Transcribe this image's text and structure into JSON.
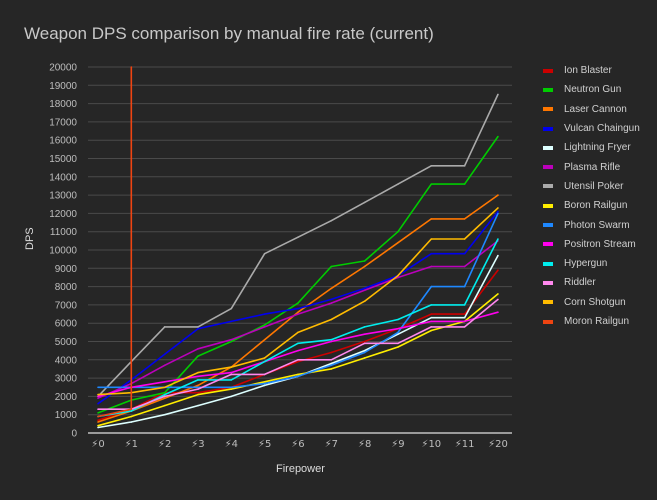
{
  "chart_data": {
    "type": "line",
    "title": "Weapon DPS comparison by manual fire rate (current)",
    "xlabel": "Firepower",
    "ylabel": "DPS",
    "ylim": [
      0,
      20000
    ],
    "yticks": [
      0,
      1000,
      2000,
      3000,
      4000,
      5000,
      6000,
      7000,
      8000,
      9000,
      10000,
      11000,
      12000,
      13000,
      14000,
      15000,
      16000,
      17000,
      18000,
      19000,
      20000
    ],
    "ytick_labels": [
      "0",
      "1000",
      "2000",
      "3000",
      "4000",
      "5000",
      "6000",
      "7000",
      "8000",
      "9000",
      "10000",
      "11000",
      "12000",
      "13000",
      "14000",
      "15000",
      "16000",
      "17000",
      "18000",
      "19000",
      "20000"
    ],
    "categories": [
      "⚡0",
      "⚡1",
      "⚡2",
      "⚡3",
      "⚡4",
      "⚡5",
      "⚡6",
      "⚡7",
      "⚡8",
      "⚡9",
      "⚡10",
      "⚡11",
      "⚡20"
    ],
    "grid": true,
    "legend_position": "right",
    "series": [
      {
        "name": "Ion Blaster",
        "color": "#cc0000",
        "values": [
          700,
          1300,
          2200,
          2200,
          2500,
          3200,
          3900,
          4400,
          5000,
          5700,
          6500,
          6500,
          8900
        ]
      },
      {
        "name": "Neutron Gun",
        "color": "#00cc00",
        "values": [
          1100,
          1800,
          2200,
          4200,
          5000,
          5900,
          7100,
          9100,
          9400,
          11000,
          13600,
          13600,
          16200
        ]
      },
      {
        "name": "Laser Cannon",
        "color": "#ff7700",
        "values": [
          600,
          1200,
          1900,
          2600,
          3600,
          5100,
          6600,
          7900,
          9100,
          10400,
          11700,
          11700,
          13000
        ]
      },
      {
        "name": "Vulcan Chaingun",
        "color": "#0000ee",
        "values": [
          1600,
          2900,
          4300,
          5700,
          6100,
          6500,
          6800,
          7300,
          7900,
          8600,
          9800,
          9800,
          12100
        ]
      },
      {
        "name": "Lightning Fryer",
        "color": "#ddffff",
        "values": [
          300,
          600,
          1000,
          1500,
          2000,
          2600,
          3100,
          3800,
          4500,
          5400,
          6300,
          6300,
          9700
        ]
      },
      {
        "name": "Plasma Rifle",
        "color": "#bb00bb",
        "values": [
          1900,
          2700,
          3700,
          4600,
          5100,
          5800,
          6500,
          7100,
          7800,
          8500,
          9100,
          9100,
          10500
        ]
      },
      {
        "name": "Utensil Poker",
        "color": "#aaaaaa",
        "values": [
          2000,
          3900,
          5800,
          5800,
          6800,
          9800,
          10700,
          11600,
          12600,
          13600,
          14600,
          14600,
          18500
        ]
      },
      {
        "name": "Boron Railgun",
        "color": "#ffee00",
        "values": [
          400,
          900,
          1500,
          2100,
          2400,
          2800,
          3200,
          3500,
          4100,
          4700,
          5600,
          6100,
          7600
        ]
      },
      {
        "name": "Photon Swarm",
        "color": "#1e88ff",
        "values": [
          2500,
          2500,
          2500,
          2500,
          2500,
          2700,
          3100,
          3700,
          4400,
          5500,
          8000,
          8000,
          12000
        ]
      },
      {
        "name": "Positron Stream",
        "color": "#ff00ee",
        "values": [
          2000,
          2500,
          2800,
          3100,
          3300,
          3900,
          4500,
          5000,
          5400,
          5700,
          6100,
          6100,
          6600
        ]
      },
      {
        "name": "Hypergun",
        "color": "#00eeee",
        "values": [
          900,
          1200,
          2100,
          2900,
          2900,
          3900,
          4900,
          5100,
          5800,
          6200,
          7000,
          7000,
          10600
        ]
      },
      {
        "name": "Riddler",
        "color": "#ff88ee",
        "values": [
          1300,
          1300,
          2000,
          2400,
          3200,
          3200,
          4000,
          4000,
          4900,
          4900,
          5800,
          5800,
          7300
        ]
      },
      {
        "name": "Corn Shotgun",
        "color": "#ffbb00",
        "values": [
          2100,
          2200,
          2500,
          3300,
          3600,
          4100,
          5500,
          6200,
          7200,
          8600,
          10600,
          10600,
          12300
        ]
      },
      {
        "name": "Moron Railgun",
        "color": "#ee4411",
        "points": [
          [
            0,
            900
          ],
          [
            1,
            1300
          ],
          [
            1,
            20000
          ]
        ]
      }
    ]
  }
}
